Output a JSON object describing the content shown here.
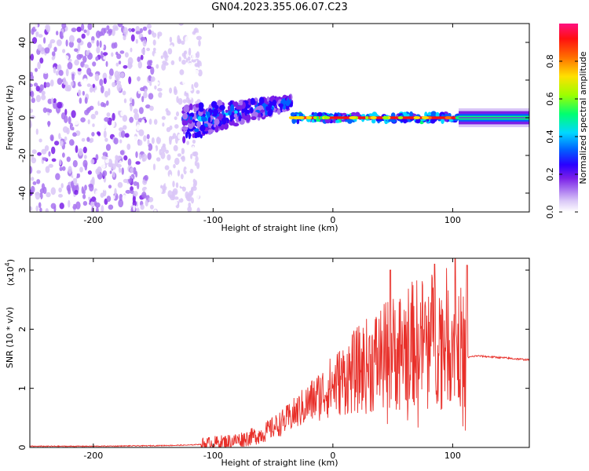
{
  "title": "GN04.2023.355.06.07.C23",
  "colors": {
    "snr_line": "#e8302a",
    "axis": "#000000"
  },
  "chart_data": [
    {
      "type": "heatmap",
      "name": "spectrogram",
      "xlabel": "Height of straight line (km)",
      "ylabel": "Frequency (Hz)",
      "xlim": [
        -253,
        164
      ],
      "ylim": [
        -50,
        50
      ],
      "x_ticks": [
        -200,
        -100,
        0,
        100
      ],
      "y_ticks": [
        -40,
        -20,
        0,
        20,
        40
      ],
      "colorbar": {
        "label": "Normalized spectral amplitude",
        "range": [
          0.0,
          1.0
        ],
        "ticks": [
          "0.0",
          "0.2",
          "0.4",
          "0.6",
          "0.8"
        ],
        "colormap": [
          "#ffffff",
          "#d9c6f7",
          "#a873f0",
          "#7a1fe8",
          "#2a00ff",
          "#0060ff",
          "#00d8ff",
          "#00ff70",
          "#9cff00",
          "#ffe000",
          "#ff7000",
          "#ff1010",
          "#ff1080"
        ]
      },
      "regions": [
        {
          "x_range": [
            -253,
            -125
          ],
          "description": "scattered noise",
          "amplitude": 0.15
        },
        {
          "x_range": [
            -125,
            -35
          ],
          "freq_center_start": -3,
          "freq_center_end": 8,
          "amplitude": 0.45
        },
        {
          "x_range": [
            -35,
            105
          ],
          "freq_center": 0,
          "amplitude": 0.9
        },
        {
          "x_range": [
            105,
            164
          ],
          "freq_center": 0,
          "amplitude": 0.55
        }
      ]
    },
    {
      "type": "line",
      "name": "snr",
      "xlabel": "Height of straight line (km)",
      "ylabel": "SNR (10 * v/v)",
      "multiplier": "(x10^4)",
      "xlim": [
        -253,
        164
      ],
      "ylim": [
        0,
        3.2
      ],
      "x_ticks": [
        -200,
        -100,
        0,
        100
      ],
      "y_ticks": [
        0,
        1,
        2,
        3
      ],
      "series": [
        {
          "x": [
            -253,
            -200,
            -150,
            -120,
            -100,
            -80,
            -60,
            -40,
            -20,
            0,
            20,
            40,
            60,
            80,
            100,
            112,
            120,
            140,
            164
          ],
          "values": [
            0.02,
            0.02,
            0.03,
            0.04,
            0.07,
            0.12,
            0.22,
            0.45,
            0.75,
            1.05,
            1.3,
            1.5,
            1.7,
            1.85,
            1.9,
            1.52,
            1.55,
            1.52,
            1.48
          ]
        }
      ],
      "spikes": [
        {
          "x": 48,
          "value": 3.0
        },
        {
          "x": 85,
          "value": 3.1
        },
        {
          "x": 102,
          "value": 3.35
        },
        {
          "x": 112,
          "value": 3.08
        }
      ]
    }
  ]
}
